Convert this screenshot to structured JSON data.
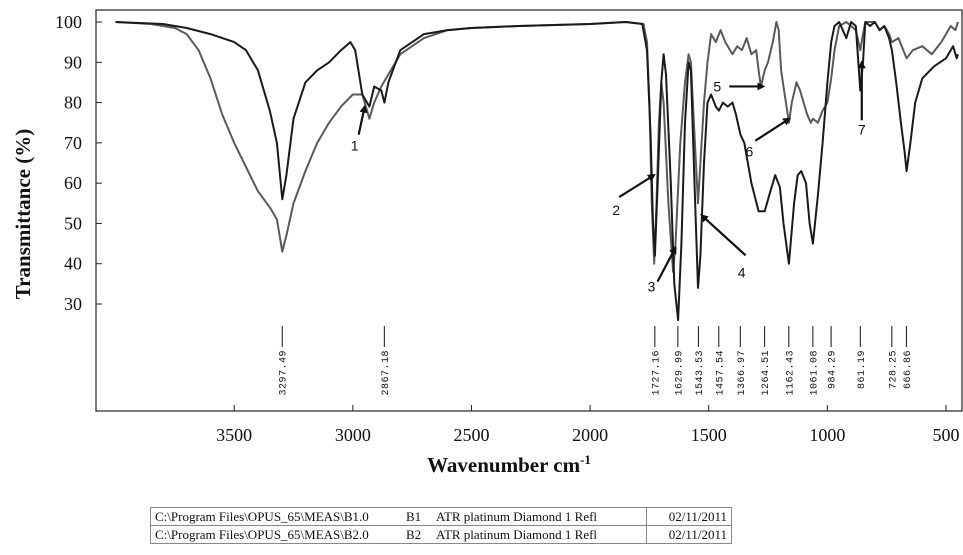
{
  "chart_data": {
    "type": "line",
    "title": "",
    "xlabel": "Wavenumber cm",
    "xlabel_superscript": "-1",
    "ylabel": "Transmittance (%)",
    "xlim": [
      4000,
      450
    ],
    "ylim": [
      10,
      102
    ],
    "x_reversed": true,
    "x_ticks": [
      3500,
      3000,
      2500,
      2000,
      1500,
      1000,
      500
    ],
    "y_ticks": [
      100,
      90,
      80,
      70,
      60,
      50,
      40,
      30
    ],
    "grid": false,
    "series": [
      {
        "name": "B1",
        "color": "#1a1a1a",
        "points": [
          [
            4000,
            100
          ],
          [
            3800,
            99.5
          ],
          [
            3700,
            98.5
          ],
          [
            3600,
            97
          ],
          [
            3500,
            95
          ],
          [
            3450,
            93
          ],
          [
            3400,
            88
          ],
          [
            3350,
            78
          ],
          [
            3320,
            70
          ],
          [
            3297,
            56
          ],
          [
            3280,
            62
          ],
          [
            3250,
            76
          ],
          [
            3200,
            85
          ],
          [
            3150,
            88
          ],
          [
            3100,
            90
          ],
          [
            3050,
            93
          ],
          [
            3010,
            95
          ],
          [
            2990,
            93
          ],
          [
            2960,
            82
          ],
          [
            2930,
            79
          ],
          [
            2910,
            84
          ],
          [
            2880,
            83
          ],
          [
            2867,
            80
          ],
          [
            2850,
            85
          ],
          [
            2800,
            93
          ],
          [
            2700,
            97
          ],
          [
            2600,
            98
          ],
          [
            2500,
            98.5
          ],
          [
            2300,
            99
          ],
          [
            2000,
            99.5
          ],
          [
            1850,
            100
          ],
          [
            1780,
            99.5
          ],
          [
            1760,
            93
          ],
          [
            1745,
            72
          ],
          [
            1735,
            50
          ],
          [
            1727,
            42
          ],
          [
            1715,
            60
          ],
          [
            1700,
            85
          ],
          [
            1690,
            92
          ],
          [
            1680,
            87
          ],
          [
            1660,
            60
          ],
          [
            1645,
            35
          ],
          [
            1629,
            26
          ],
          [
            1615,
            45
          ],
          [
            1600,
            75
          ],
          [
            1585,
            90
          ],
          [
            1575,
            88
          ],
          [
            1560,
            60
          ],
          [
            1545,
            34
          ],
          [
            1535,
            42
          ],
          [
            1520,
            65
          ],
          [
            1505,
            80
          ],
          [
            1490,
            82
          ],
          [
            1470,
            79
          ],
          [
            1457,
            78
          ],
          [
            1440,
            80
          ],
          [
            1420,
            79
          ],
          [
            1400,
            80
          ],
          [
            1385,
            77
          ],
          [
            1366,
            72
          ],
          [
            1350,
            70
          ],
          [
            1320,
            60
          ],
          [
            1290,
            53
          ],
          [
            1264,
            53
          ],
          [
            1240,
            58
          ],
          [
            1220,
            62
          ],
          [
            1200,
            59
          ],
          [
            1185,
            50
          ],
          [
            1162,
            40
          ],
          [
            1140,
            55
          ],
          [
            1125,
            62
          ],
          [
            1110,
            63
          ],
          [
            1090,
            60
          ],
          [
            1075,
            50
          ],
          [
            1061,
            45
          ],
          [
            1040,
            57
          ],
          [
            1020,
            70
          ],
          [
            1000,
            85
          ],
          [
            984,
            95
          ],
          [
            970,
            99
          ],
          [
            950,
            100
          ],
          [
            920,
            96
          ],
          [
            900,
            100
          ],
          [
            880,
            99
          ],
          [
            861,
            83
          ],
          [
            850,
            90
          ],
          [
            840,
            100
          ],
          [
            820,
            99
          ],
          [
            800,
            100
          ],
          [
            780,
            98
          ],
          [
            760,
            99
          ],
          [
            740,
            96
          ],
          [
            728,
            93
          ],
          [
            710,
            85
          ],
          [
            690,
            75
          ],
          [
            675,
            68
          ],
          [
            666,
            63
          ],
          [
            650,
            70
          ],
          [
            630,
            80
          ],
          [
            600,
            86
          ],
          [
            550,
            89
          ],
          [
            500,
            91
          ],
          [
            470,
            94
          ],
          [
            455,
            91
          ],
          [
            450,
            92
          ]
        ]
      },
      {
        "name": "B2",
        "color": "#5a5a5a",
        "points": [
          [
            4000,
            100
          ],
          [
            3850,
            99.5
          ],
          [
            3750,
            98.5
          ],
          [
            3700,
            97
          ],
          [
            3650,
            93
          ],
          [
            3600,
            86
          ],
          [
            3550,
            77
          ],
          [
            3500,
            70
          ],
          [
            3450,
            64
          ],
          [
            3400,
            58
          ],
          [
            3350,
            54
          ],
          [
            3320,
            51
          ],
          [
            3297,
            43
          ],
          [
            3280,
            47
          ],
          [
            3250,
            55
          ],
          [
            3200,
            63
          ],
          [
            3150,
            70
          ],
          [
            3100,
            75
          ],
          [
            3050,
            79
          ],
          [
            3000,
            82
          ],
          [
            2960,
            82
          ],
          [
            2930,
            76
          ],
          [
            2910,
            80
          ],
          [
            2880,
            84
          ],
          [
            2850,
            87
          ],
          [
            2800,
            92
          ],
          [
            2700,
            96
          ],
          [
            2600,
            98
          ],
          [
            2500,
            98.5
          ],
          [
            2300,
            99
          ],
          [
            2000,
            99.5
          ],
          [
            1850,
            100
          ],
          [
            1775,
            99.5
          ],
          [
            1760,
            95
          ],
          [
            1750,
            80
          ],
          [
            1740,
            55
          ],
          [
            1730,
            40
          ],
          [
            1720,
            55
          ],
          [
            1710,
            75
          ],
          [
            1700,
            85
          ],
          [
            1690,
            80
          ],
          [
            1670,
            55
          ],
          [
            1650,
            38
          ],
          [
            1640,
            45
          ],
          [
            1620,
            70
          ],
          [
            1600,
            85
          ],
          [
            1585,
            92
          ],
          [
            1575,
            90
          ],
          [
            1560,
            72
          ],
          [
            1545,
            55
          ],
          [
            1535,
            65
          ],
          [
            1520,
            80
          ],
          [
            1505,
            90
          ],
          [
            1490,
            97
          ],
          [
            1470,
            95
          ],
          [
            1450,
            98
          ],
          [
            1430,
            95
          ],
          [
            1400,
            92
          ],
          [
            1380,
            94
          ],
          [
            1360,
            93
          ],
          [
            1340,
            96
          ],
          [
            1320,
            92
          ],
          [
            1300,
            93
          ],
          [
            1290,
            88
          ],
          [
            1280,
            84
          ],
          [
            1264,
            88
          ],
          [
            1250,
            90
          ],
          [
            1230,
            95
          ],
          [
            1215,
            100
          ],
          [
            1205,
            98
          ],
          [
            1195,
            88
          ],
          [
            1180,
            82
          ],
          [
            1162,
            75
          ],
          [
            1150,
            80
          ],
          [
            1130,
            85
          ],
          [
            1115,
            83
          ],
          [
            1100,
            80
          ],
          [
            1085,
            77
          ],
          [
            1070,
            75
          ],
          [
            1061,
            76
          ],
          [
            1040,
            75
          ],
          [
            1020,
            78
          ],
          [
            1000,
            80
          ],
          [
            984,
            86
          ],
          [
            970,
            93
          ],
          [
            950,
            99
          ],
          [
            920,
            100
          ],
          [
            900,
            99
          ],
          [
            880,
            98
          ],
          [
            861,
            93
          ],
          [
            850,
            97
          ],
          [
            840,
            100
          ],
          [
            820,
            100
          ],
          [
            800,
            100
          ],
          [
            780,
            98
          ],
          [
            760,
            99
          ],
          [
            740,
            97
          ],
          [
            728,
            95
          ],
          [
            700,
            96
          ],
          [
            680,
            93
          ],
          [
            666,
            91
          ],
          [
            640,
            93
          ],
          [
            600,
            94
          ],
          [
            560,
            92
          ],
          [
            520,
            95
          ],
          [
            500,
            97
          ],
          [
            480,
            99
          ],
          [
            460,
            98
          ],
          [
            450,
            100
          ]
        ]
      }
    ],
    "peak_labels": [
      "3297.49",
      "2867.18",
      "1727.16",
      "1629.99",
      "1543.53",
      "1457.54",
      "1366.97",
      "1264.51",
      "1162.43",
      "1061.08",
      "984.29",
      "861.19",
      "728.25",
      "666.86"
    ],
    "peak_wavenumbers": [
      3297.49,
      2867.18,
      1727.16,
      1629.99,
      1543.53,
      1457.54,
      1366.97,
      1264.51,
      1162.43,
      1061.08,
      984.29,
      861.19,
      728.25,
      666.86
    ],
    "annotations": [
      {
        "label": "1",
        "x": 2950,
        "y": 79
      },
      {
        "label": "2",
        "x": 1730,
        "y": 62
      },
      {
        "label": "3",
        "x": 1640,
        "y": 44
      },
      {
        "label": "4",
        "x": 1530,
        "y": 52
      },
      {
        "label": "5",
        "x": 1270,
        "y": 84
      },
      {
        "label": "6",
        "x": 1160,
        "y": 76
      },
      {
        "label": "7",
        "x": 855,
        "y": 90
      }
    ]
  },
  "legend_table": [
    {
      "path": "C:\\Program Files\\OPUS_65\\MEAS\\B1.0",
      "code": "B1",
      "desc": "ATR platinum Diamond 1 Refl",
      "date": "02/11/2011"
    },
    {
      "path": "C:\\Program Files\\OPUS_65\\MEAS\\B2.0",
      "code": "B2",
      "desc": "ATR platinum Diamond 1 Refl",
      "date": "02/11/2011"
    }
  ]
}
